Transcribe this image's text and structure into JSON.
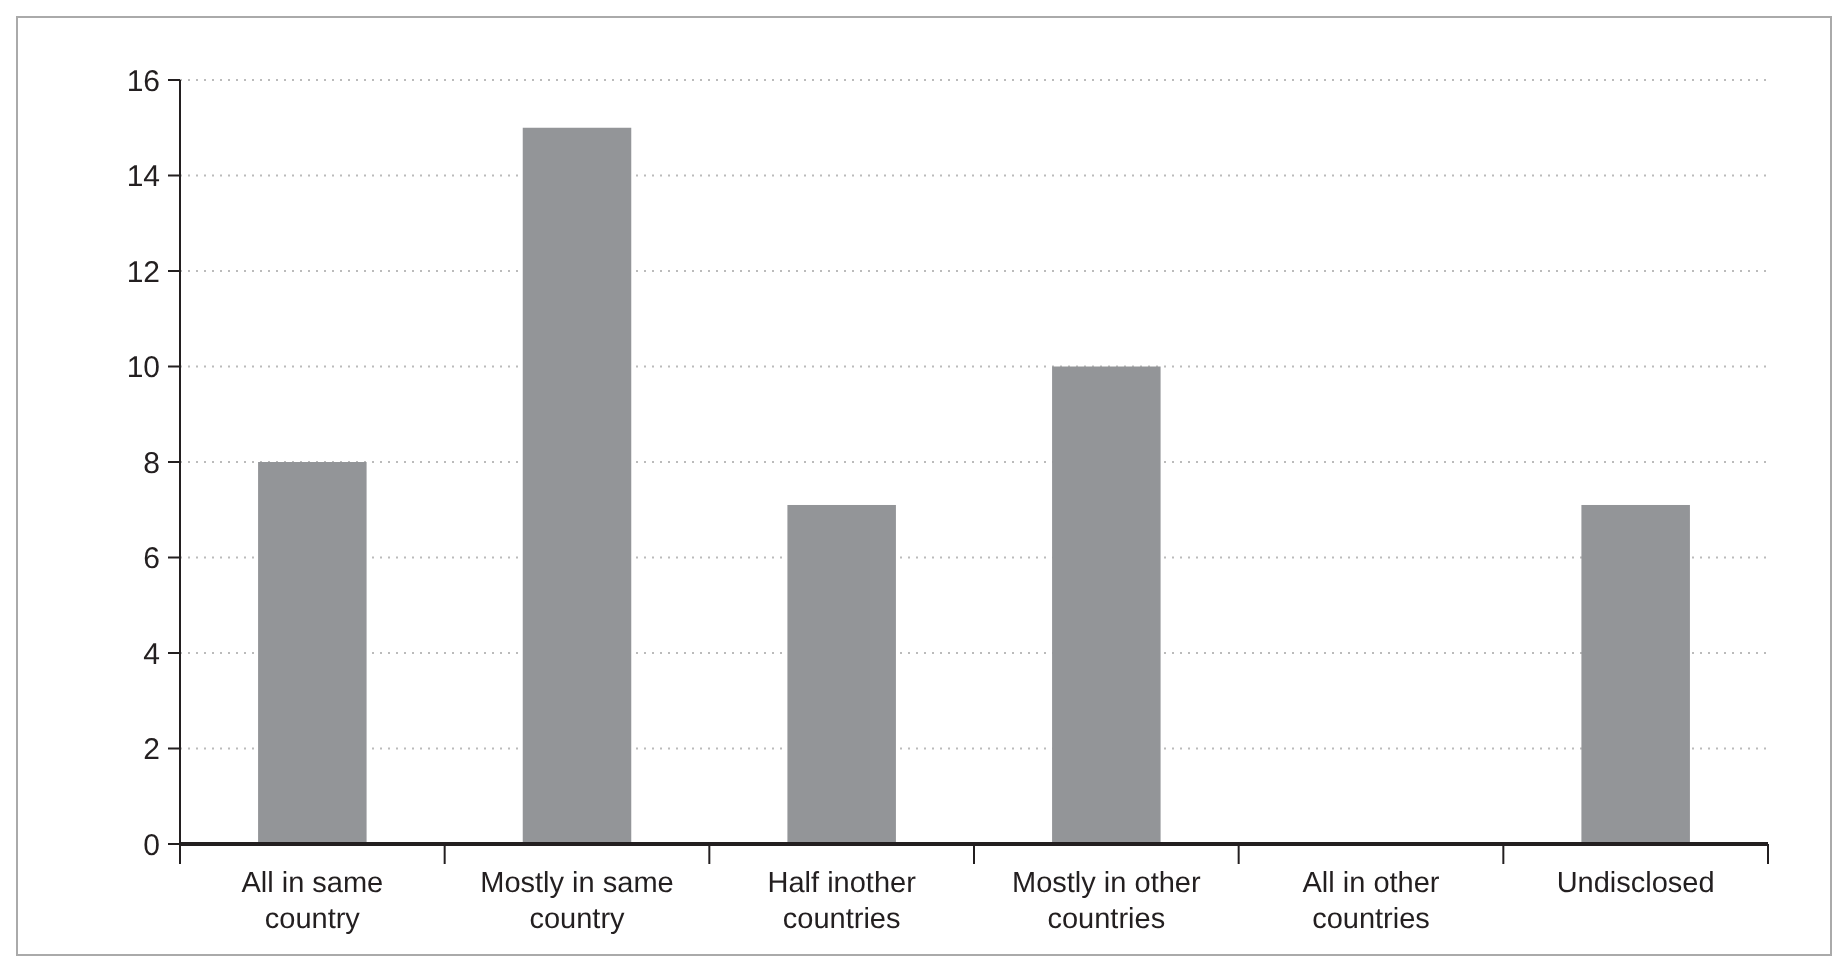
{
  "chart_data": {
    "type": "bar",
    "categories": [
      "All in same country",
      "Mostly in same country",
      "Half inother countries",
      "Mostly in other countries",
      "All in other countries",
      "Undisclosed"
    ],
    "values": [
      8,
      15,
      7.1,
      10,
      0,
      7.1
    ],
    "color": "#939598",
    "ylim": [
      0,
      16
    ],
    "yticks": [
      0,
      2,
      4,
      6,
      8,
      10,
      12,
      14,
      16
    ],
    "grid": "y"
  }
}
